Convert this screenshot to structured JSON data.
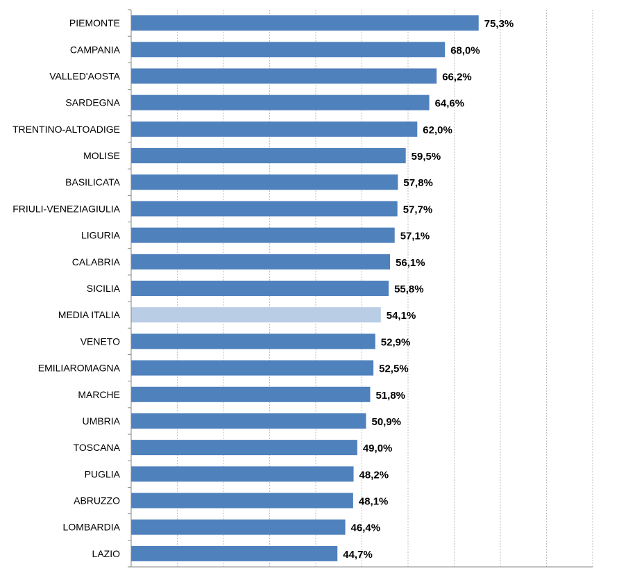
{
  "chart_data": {
    "type": "bar",
    "orientation": "horizontal",
    "categories": [
      "PIEMONTE",
      "CAMPANIA",
      "VALLED'AOSTA",
      "SARDEGNA",
      "TRENTINO-ALTOADIGE",
      "MOLISE",
      "BASILICATA",
      "FRIULI-VENEZIAGIULIA",
      "LIGURIA",
      "CALABRIA",
      "SICILIA",
      "MEDIA ITALIA",
      "VENETO",
      "EMILIAROMAGNA",
      "MARCHE",
      "UMBRIA",
      "TOSCANA",
      "PUGLIA",
      "ABRUZZO",
      "LOMBARDIA",
      "LAZIO"
    ],
    "values": [
      75.3,
      68.0,
      66.2,
      64.6,
      62.0,
      59.5,
      57.8,
      57.7,
      57.1,
      56.1,
      55.8,
      54.1,
      52.9,
      52.5,
      51.8,
      50.9,
      49.0,
      48.2,
      48.1,
      46.4,
      44.7
    ],
    "value_labels": [
      "75,3%",
      "68,0%",
      "66,2%",
      "64,6%",
      "62,0%",
      "59,5%",
      "57,8%",
      "57,7%",
      "57,1%",
      "56,1%",
      "55,8%",
      "54,1%",
      "52,9%",
      "52,5%",
      "51,8%",
      "50,9%",
      "49,0%",
      "48,2%",
      "48,1%",
      "46,4%",
      "44,7%"
    ],
    "highlight_category": "MEDIA ITALIA",
    "xlim": [
      0,
      100
    ],
    "x_grid_step": 10,
    "grid": "vertical-dashed",
    "title": "",
    "xlabel": "",
    "ylabel": "",
    "colors": {
      "bar": "#4f81bd",
      "highlight": "#b9cde5",
      "grid": "#bfbfbf",
      "axis": "#868686"
    }
  }
}
